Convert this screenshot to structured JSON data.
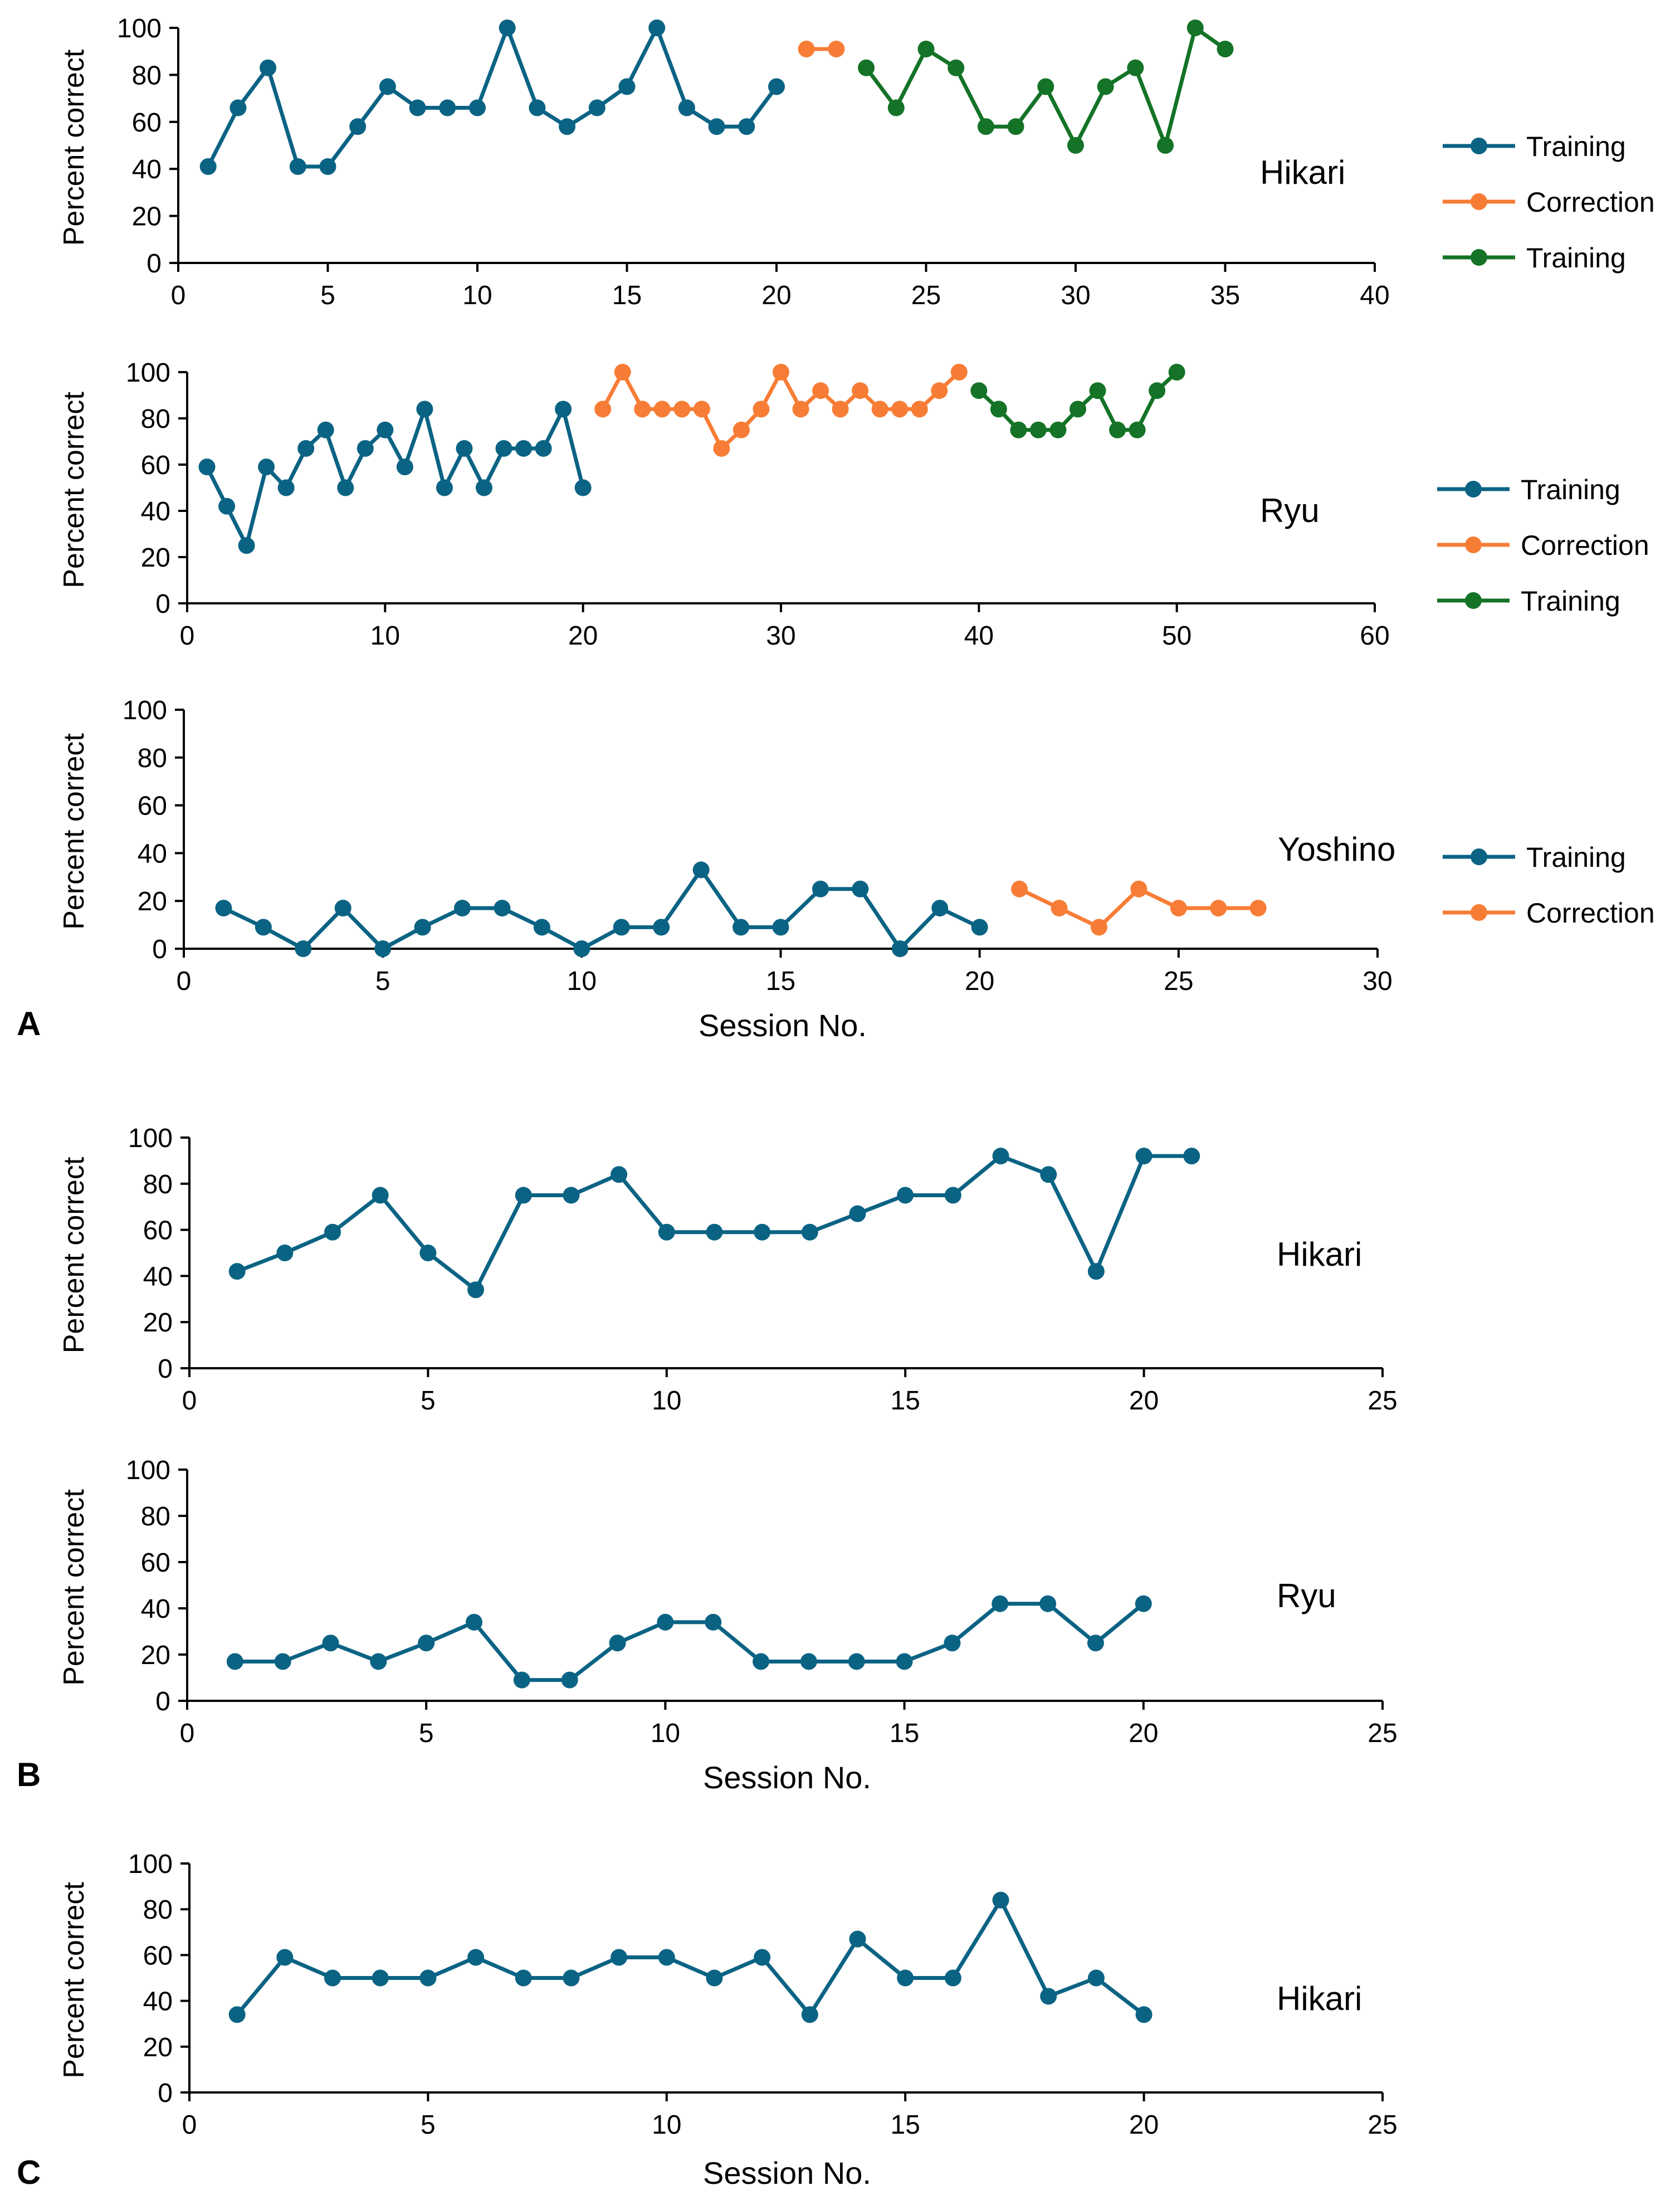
{
  "colors": {
    "training": "#0b6384",
    "correction": "#f77d36",
    "training2": "#147326",
    "axis": "#000000",
    "text": "#000000"
  },
  "chart_data": [
    {
      "type": "line",
      "panel_label": "",
      "subject": "Hikari",
      "xlabel": "",
      "ylabel": "Percent correct",
      "xlim": [
        0,
        40
      ],
      "ylim": [
        0,
        100
      ],
      "xticks": [
        0,
        5,
        10,
        15,
        20,
        25,
        30,
        35,
        40
      ],
      "yticks": [
        0,
        20,
        40,
        60,
        80,
        100
      ],
      "legend": [
        "Training",
        "Correction",
        "Training"
      ],
      "series": [
        {
          "name": "Training",
          "color_key": "training",
          "x": [
            1,
            2,
            3,
            4,
            5,
            6,
            7,
            8,
            9,
            10,
            11,
            12,
            13,
            14,
            15,
            16,
            17,
            18,
            19,
            20
          ],
          "values": [
            41,
            66,
            83,
            41,
            41,
            58,
            75,
            66,
            66,
            66,
            100,
            66,
            58,
            66,
            75,
            100,
            66,
            58,
            58,
            75
          ]
        },
        {
          "name": "Correction",
          "color_key": "correction",
          "x": [
            21,
            22
          ],
          "values": [
            91,
            91
          ]
        },
        {
          "name": "Training",
          "color_key": "training2",
          "x": [
            23,
            24,
            25,
            26,
            27,
            28,
            29,
            30,
            31,
            32,
            33,
            34,
            35
          ],
          "values": [
            83,
            66,
            91,
            83,
            58,
            58,
            75,
            50,
            75,
            83,
            50,
            100,
            91
          ]
        }
      ]
    },
    {
      "type": "line",
      "panel_label": "",
      "subject": "Ryu",
      "xlabel": "",
      "ylabel": "Percent correct",
      "xlim": [
        0,
        60
      ],
      "ylim": [
        0,
        100
      ],
      "xticks": [
        0,
        10,
        20,
        30,
        40,
        50,
        60
      ],
      "yticks": [
        0,
        20,
        40,
        60,
        80,
        100
      ],
      "legend": [
        "Training",
        "Correction",
        "Training"
      ],
      "series": [
        {
          "name": "Training",
          "color_key": "training",
          "x": [
            1,
            2,
            3,
            4,
            5,
            6,
            7,
            8,
            9,
            10,
            11,
            12,
            13,
            14,
            15,
            16,
            17,
            18,
            19,
            20
          ],
          "values": [
            59,
            42,
            25,
            59,
            50,
            67,
            75,
            50,
            67,
            75,
            59,
            84,
            50,
            67,
            50,
            67,
            67,
            67,
            84,
            50
          ]
        },
        {
          "name": "Correction",
          "color_key": "correction",
          "x": [
            21,
            22,
            23,
            24,
            25,
            26,
            27,
            28,
            29,
            30,
            31,
            32,
            33,
            34,
            35,
            36,
            37,
            38,
            39
          ],
          "values": [
            84,
            100,
            84,
            84,
            84,
            84,
            67,
            75,
            84,
            100,
            84,
            92,
            84,
            92,
            84,
            84,
            84,
            92,
            100
          ]
        },
        {
          "name": "Training",
          "color_key": "training2",
          "x": [
            40,
            41,
            42,
            43,
            44,
            45,
            46,
            47,
            48,
            49,
            50
          ],
          "values": [
            92,
            84,
            75,
            75,
            75,
            84,
            92,
            75,
            75,
            92,
            100
          ]
        }
      ]
    },
    {
      "type": "line",
      "panel_label": "A",
      "subject": "Yoshino",
      "xlabel": "Session No.",
      "ylabel": "Percent correct",
      "xlim": [
        0,
        30
      ],
      "ylim": [
        0,
        100
      ],
      "xticks": [
        0,
        5,
        10,
        15,
        20,
        25,
        30
      ],
      "yticks": [
        0,
        20,
        40,
        60,
        80,
        100
      ],
      "legend": [
        "Training",
        "Correction"
      ],
      "series": [
        {
          "name": "Training",
          "color_key": "training",
          "x": [
            1,
            2,
            3,
            4,
            5,
            6,
            7,
            8,
            9,
            10,
            11,
            12,
            13,
            14,
            15,
            16,
            17,
            18,
            19,
            20
          ],
          "values": [
            17,
            9,
            0,
            17,
            0,
            9,
            17,
            17,
            9,
            0,
            9,
            9,
            33,
            9,
            9,
            25,
            25,
            0,
            17,
            9
          ]
        },
        {
          "name": "Correction",
          "color_key": "correction",
          "x": [
            21,
            22,
            23,
            24,
            25,
            26,
            27
          ],
          "values": [
            25,
            17,
            9,
            25,
            17,
            17,
            17
          ]
        }
      ]
    },
    {
      "type": "line",
      "panel_label": "",
      "subject": "Hikari",
      "xlabel": "",
      "ylabel": "Percent correct",
      "xlim": [
        0,
        25
      ],
      "ylim": [
        0,
        100
      ],
      "xticks": [
        0,
        5,
        10,
        15,
        20,
        25
      ],
      "yticks": [
        0,
        20,
        40,
        60,
        80,
        100
      ],
      "legend": [],
      "series": [
        {
          "name": "Training",
          "color_key": "training",
          "x": [
            1,
            2,
            3,
            4,
            5,
            6,
            7,
            8,
            9,
            10,
            11,
            12,
            13,
            14,
            15,
            16,
            17,
            18,
            19,
            20,
            21
          ],
          "values": [
            42,
            50,
            59,
            75,
            50,
            34,
            75,
            75,
            84,
            59,
            59,
            59,
            59,
            67,
            75,
            75,
            92,
            84,
            42,
            92,
            92
          ]
        }
      ]
    },
    {
      "type": "line",
      "panel_label": "B",
      "subject": "Ryu",
      "xlabel": "Session No.",
      "ylabel": "Percent correct",
      "xlim": [
        0,
        25
      ],
      "ylim": [
        0,
        100
      ],
      "xticks": [
        0,
        5,
        10,
        15,
        20,
        25
      ],
      "yticks": [
        0,
        20,
        40,
        60,
        80,
        100
      ],
      "legend": [],
      "series": [
        {
          "name": "Training",
          "color_key": "training",
          "x": [
            1,
            2,
            3,
            4,
            5,
            6,
            7,
            8,
            9,
            10,
            11,
            12,
            13,
            14,
            15,
            16,
            17,
            18,
            19,
            20
          ],
          "values": [
            17,
            17,
            25,
            17,
            25,
            34,
            9,
            9,
            25,
            34,
            34,
            17,
            17,
            17,
            17,
            25,
            42,
            42,
            25,
            42
          ]
        }
      ]
    },
    {
      "type": "line",
      "panel_label": "C",
      "subject": "Hikari",
      "xlabel": "Session No.",
      "ylabel": "Percent correct",
      "xlim": [
        0,
        25
      ],
      "ylim": [
        0,
        100
      ],
      "xticks": [
        0,
        5,
        10,
        15,
        20,
        25
      ],
      "yticks": [
        0,
        20,
        40,
        60,
        80,
        100
      ],
      "legend": [],
      "series": [
        {
          "name": "Training",
          "color_key": "training",
          "x": [
            1,
            2,
            3,
            4,
            5,
            6,
            7,
            8,
            9,
            10,
            11,
            12,
            13,
            14,
            15,
            16,
            17,
            18,
            19,
            20
          ],
          "values": [
            34,
            59,
            50,
            50,
            50,
            59,
            50,
            50,
            59,
            59,
            50,
            59,
            34,
            67,
            50,
            50,
            84,
            42,
            50,
            34
          ]
        }
      ]
    }
  ]
}
